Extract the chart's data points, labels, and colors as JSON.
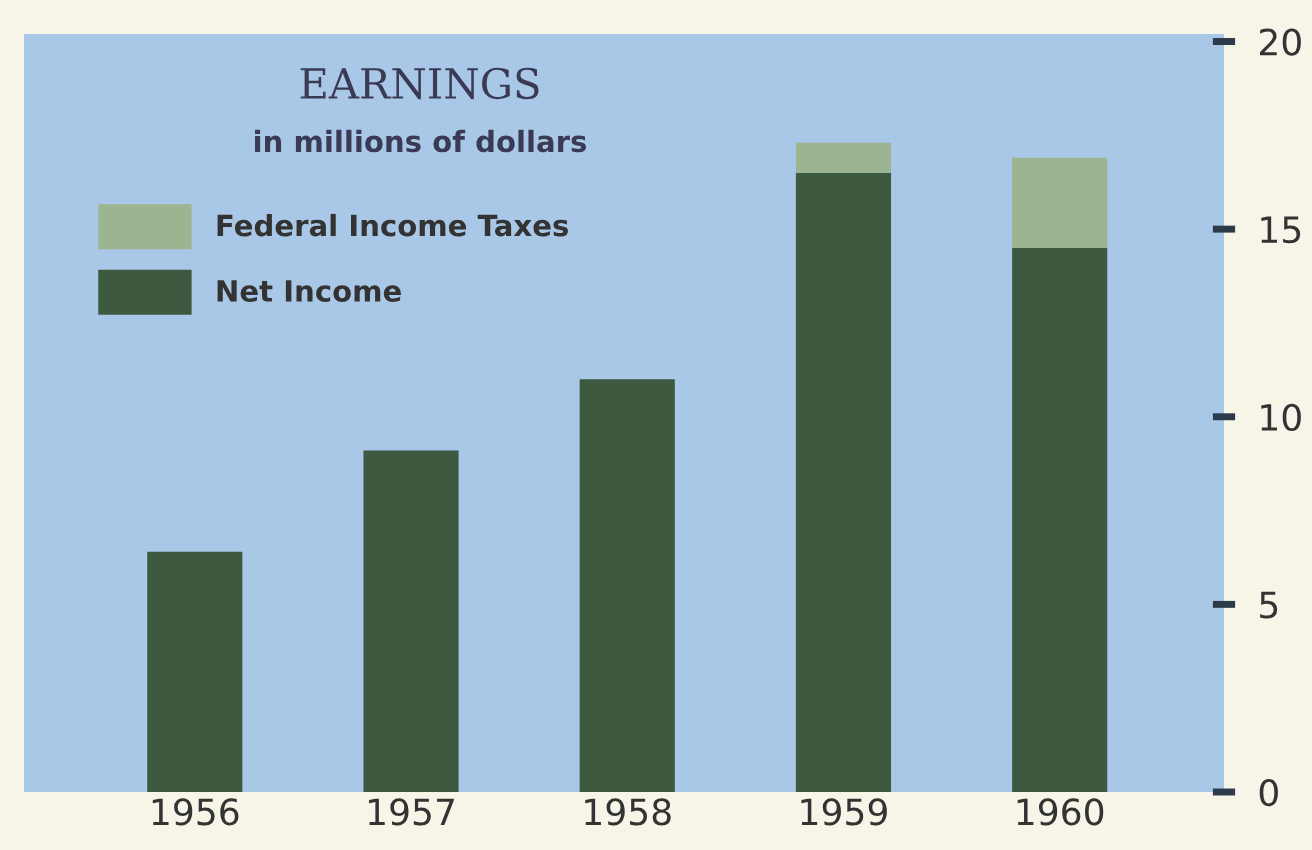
{
  "chart_data": {
    "type": "bar",
    "title": "EARNINGS",
    "subtitle": "in millions of dollars",
    "categories": [
      "1956",
      "1957",
      "1958",
      "1959",
      "1960"
    ],
    "stacked": true,
    "series": [
      {
        "name": "Net Income",
        "color": "#3d5a40",
        "values": [
          6.4,
          9.1,
          11.0,
          16.5,
          14.5
        ]
      },
      {
        "name": "Federal Income Taxes",
        "color": "#9db491",
        "values": [
          0,
          0,
          0,
          0.8,
          2.4
        ]
      }
    ],
    "ylim": [
      0,
      20.2
    ],
    "yticks": [
      0,
      5,
      10,
      15,
      20
    ],
    "grid": false,
    "legend": "top left"
  }
}
